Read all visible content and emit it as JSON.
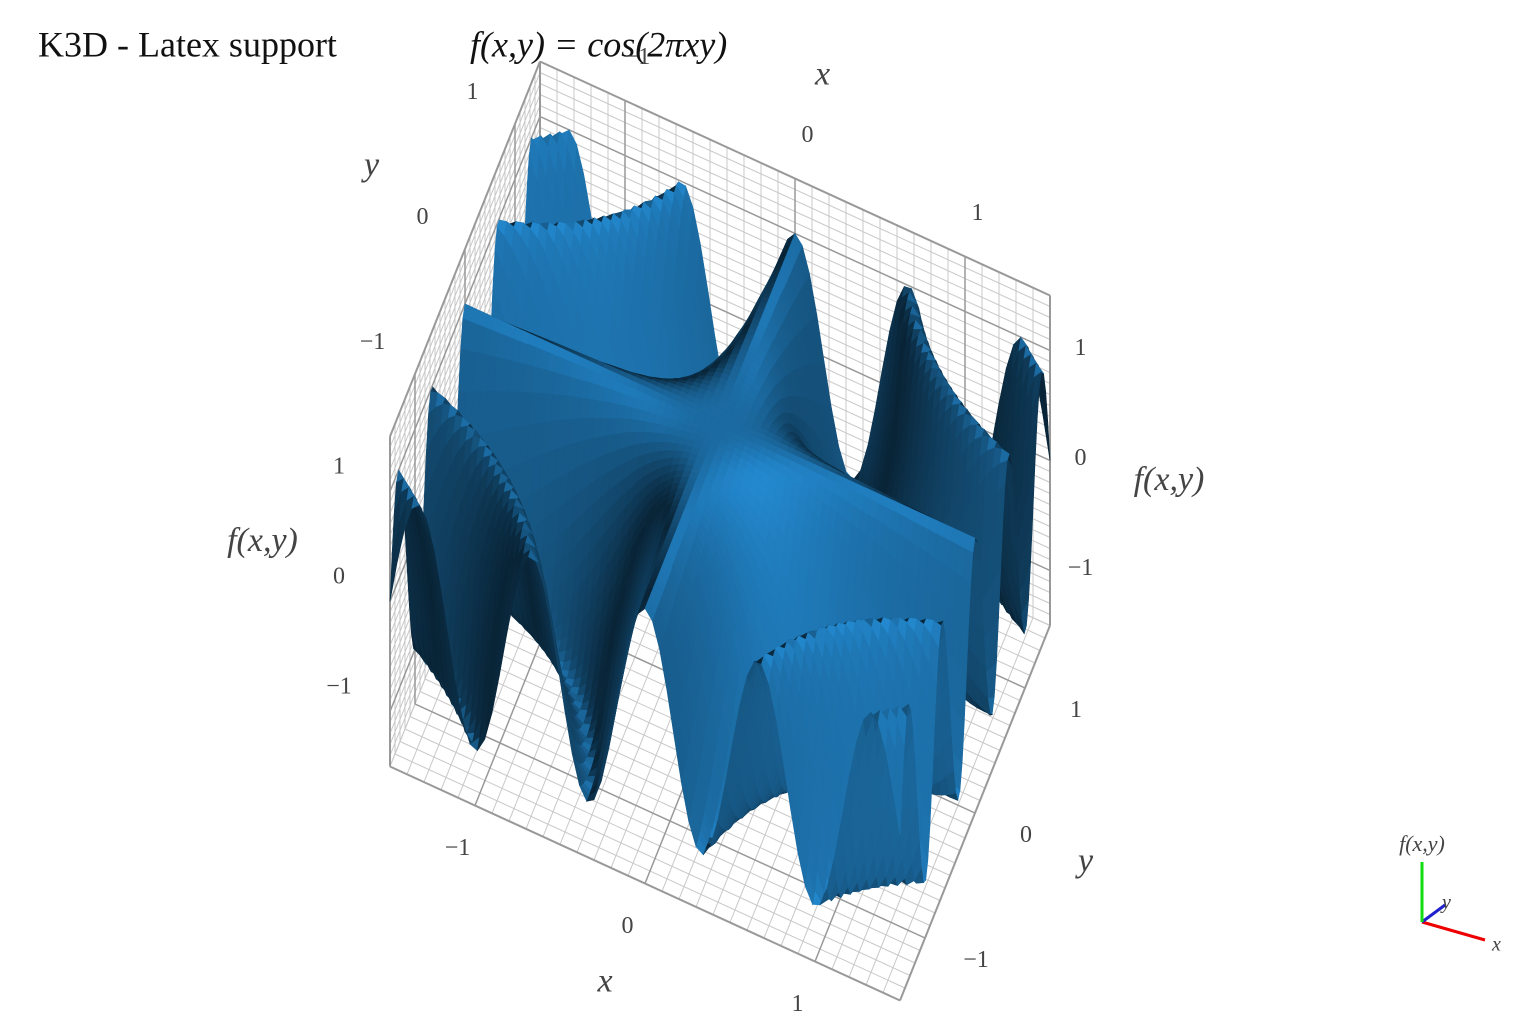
{
  "chart_data": {
    "type": "surface3d",
    "title": "K3D - Latex support",
    "formula": "f(x,y) = cos(2πxy)",
    "xlabel": "x",
    "ylabel": "y",
    "zlabel": "f(x,y)",
    "xlim": [
      -1.5,
      1.5
    ],
    "ylim": [
      -1.5,
      1.5
    ],
    "zlim": [
      -1.5,
      1.5
    ],
    "xticks": [
      {
        "value": -1,
        "label": "−1"
      },
      0,
      1
    ],
    "yticks": [
      {
        "value": -1,
        "label": "−1"
      },
      0,
      1
    ],
    "zticks": [
      {
        "value": -1,
        "label": "−1"
      },
      0,
      1
    ],
    "color": "#1f77b4",
    "grid": true
  }
}
